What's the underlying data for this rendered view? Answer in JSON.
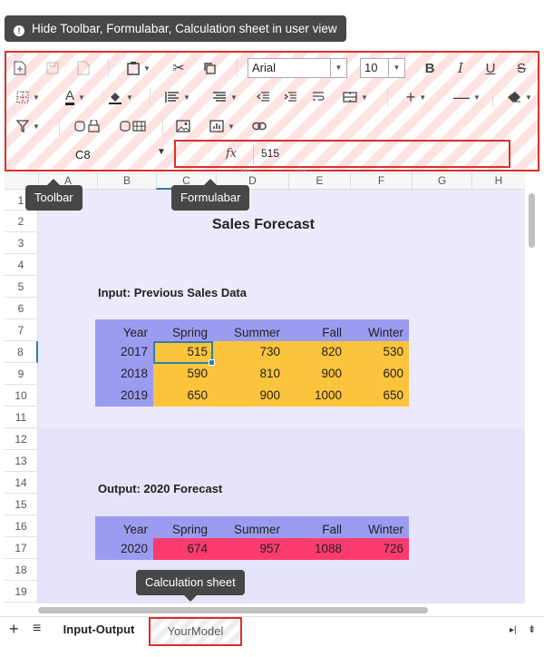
{
  "hide_tip": "Hide Toolbar, Formulabar, Calculation sheet in user view",
  "callouts": {
    "toolbar": "Toolbar",
    "formulabar": "Formulabar",
    "calculation_sheet": "Calculation sheet"
  },
  "toolbar": {
    "font_family": "Arial",
    "font_size": "10",
    "bold_label": "B",
    "italic_label": "I",
    "underline_label": "U",
    "strike_label": "S"
  },
  "namebox": "C8",
  "formula_value": "515",
  "columns": [
    "A",
    "B",
    "C",
    "D",
    "E",
    "F",
    "G",
    "H"
  ],
  "rows": [
    "1",
    "2",
    "3",
    "4",
    "5",
    "6",
    "7",
    "8",
    "9",
    "10",
    "11",
    "12",
    "13",
    "14",
    "15",
    "16",
    "17",
    "18",
    "19"
  ],
  "sheet": {
    "title": "Sales Forecast",
    "input_label": "Input: Previous Sales Data",
    "output_label": "Output: 2020 Forecast",
    "headers": [
      "Year",
      "Spring",
      "Summer",
      "Fall",
      "Winter"
    ],
    "input_rows": [
      [
        "2017",
        "515",
        "730",
        "820",
        "530"
      ],
      [
        "2018",
        "590",
        "810",
        "900",
        "600"
      ],
      [
        "2019",
        "650",
        "900",
        "1000",
        "650"
      ]
    ],
    "output_row": [
      "2020",
      "674",
      "957",
      "1088",
      "726"
    ]
  },
  "tabs": [
    "Input-Output",
    "YourModel"
  ],
  "colors": {
    "header": "#9b9cf0",
    "input": "#fbc43c",
    "output": "#fb3b6e",
    "highlight": "#d9302c"
  }
}
